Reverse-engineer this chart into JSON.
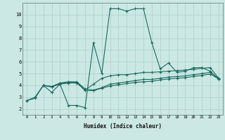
{
  "xlabel": "Humidex (Indice chaleur)",
  "bg_color": "#cce8e4",
  "line_color": "#1a6b5e",
  "grid_color": "#aacfcb",
  "xlim": [
    -0.5,
    23.5
  ],
  "ylim": [
    1.5,
    11.0
  ],
  "xticks": [
    0,
    1,
    2,
    3,
    4,
    5,
    6,
    7,
    8,
    9,
    10,
    11,
    12,
    13,
    14,
    15,
    16,
    17,
    18,
    19,
    20,
    21,
    22,
    23
  ],
  "yticks": [
    2,
    3,
    4,
    5,
    6,
    7,
    8,
    9,
    10
  ],
  "series1": {
    "x": [
      0,
      1,
      2,
      3,
      4,
      5,
      6,
      7,
      8,
      9,
      10,
      11,
      12,
      13,
      14,
      15,
      16,
      17,
      18,
      19,
      20,
      21,
      22,
      23
    ],
    "y": [
      2.7,
      2.9,
      4.0,
      3.4,
      4.1,
      2.3,
      2.3,
      2.1,
      7.6,
      5.0,
      10.5,
      10.5,
      10.3,
      10.5,
      10.5,
      7.6,
      5.4,
      5.9,
      5.1,
      5.2,
      5.5,
      5.5,
      5.2,
      4.5
    ]
  },
  "series2": {
    "x": [
      0,
      1,
      2,
      3,
      4,
      5,
      6,
      7,
      8,
      9,
      10,
      11,
      12,
      13,
      14,
      15,
      16,
      17,
      18,
      19,
      20,
      21,
      22,
      23
    ],
    "y": [
      2.7,
      3.0,
      4.0,
      3.9,
      4.1,
      4.2,
      4.2,
      3.6,
      4.1,
      4.6,
      4.8,
      4.9,
      4.9,
      5.0,
      5.1,
      5.1,
      5.15,
      5.2,
      5.25,
      5.3,
      5.35,
      5.45,
      5.5,
      4.6
    ]
  },
  "series3": {
    "x": [
      2,
      3,
      4,
      5,
      6,
      7,
      8,
      9,
      10,
      11,
      12,
      13,
      14,
      15,
      16,
      17,
      18,
      19,
      20,
      21,
      22,
      23
    ],
    "y": [
      4.0,
      3.9,
      4.2,
      4.3,
      4.3,
      3.7,
      3.6,
      3.8,
      4.1,
      4.2,
      4.3,
      4.4,
      4.5,
      4.5,
      4.6,
      4.7,
      4.75,
      4.8,
      4.9,
      5.0,
      5.1,
      4.6
    ]
  },
  "series4": {
    "x": [
      2,
      3,
      4,
      5,
      6,
      7,
      8,
      9,
      10,
      11,
      12,
      13,
      14,
      15,
      16,
      17,
      18,
      19,
      20,
      21,
      22,
      23
    ],
    "y": [
      4.0,
      3.85,
      4.15,
      4.25,
      4.25,
      3.55,
      3.55,
      3.75,
      3.95,
      4.05,
      4.15,
      4.25,
      4.3,
      4.35,
      4.45,
      4.55,
      4.6,
      4.65,
      4.75,
      4.85,
      4.95,
      4.55
    ]
  }
}
